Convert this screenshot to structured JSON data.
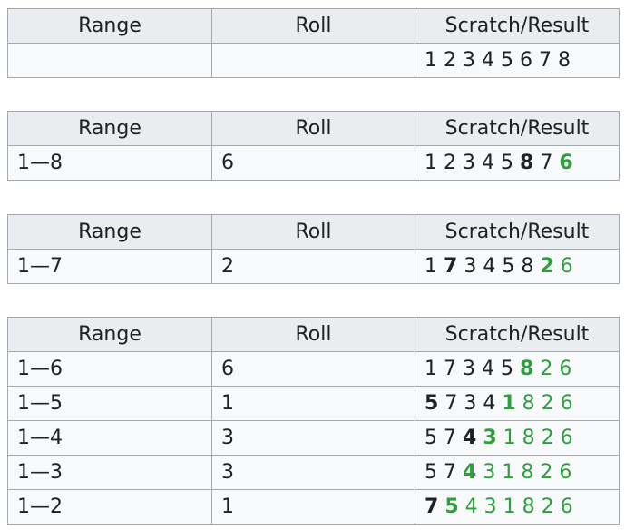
{
  "headers": {
    "range": "Range",
    "roll": "Roll",
    "scratch": "Scratch/Result"
  },
  "colors": {
    "green": "#2e9e3e",
    "black": "#202122"
  },
  "tables": [
    {
      "rows": [
        {
          "range": "",
          "roll": "",
          "digits": [
            {
              "d": "1",
              "s": "n"
            },
            {
              "d": "2",
              "s": "n"
            },
            {
              "d": "3",
              "s": "n"
            },
            {
              "d": "4",
              "s": "n"
            },
            {
              "d": "5",
              "s": "n"
            },
            {
              "d": "6",
              "s": "n"
            },
            {
              "d": "7",
              "s": "n"
            },
            {
              "d": "8",
              "s": "n"
            }
          ]
        }
      ]
    },
    {
      "rows": [
        {
          "range": "1—8",
          "roll": "6",
          "digits": [
            {
              "d": "1",
              "s": "n"
            },
            {
              "d": "2",
              "s": "n"
            },
            {
              "d": "3",
              "s": "n"
            },
            {
              "d": "4",
              "s": "n"
            },
            {
              "d": "5",
              "s": "n"
            },
            {
              "d": "8",
              "s": "b"
            },
            {
              "d": "7",
              "s": "n"
            },
            {
              "d": "6",
              "s": "gb"
            }
          ]
        }
      ]
    },
    {
      "rows": [
        {
          "range": "1—7",
          "roll": "2",
          "digits": [
            {
              "d": "1",
              "s": "n"
            },
            {
              "d": "7",
              "s": "b"
            },
            {
              "d": "3",
              "s": "n"
            },
            {
              "d": "4",
              "s": "n"
            },
            {
              "d": "5",
              "s": "n"
            },
            {
              "d": "8",
              "s": "n"
            },
            {
              "d": "2",
              "s": "gb"
            },
            {
              "d": "6",
              "s": "g"
            }
          ]
        }
      ]
    },
    {
      "rows": [
        {
          "range": "1—6",
          "roll": "6",
          "digits": [
            {
              "d": "1",
              "s": "n"
            },
            {
              "d": "7",
              "s": "n"
            },
            {
              "d": "3",
              "s": "n"
            },
            {
              "d": "4",
              "s": "n"
            },
            {
              "d": "5",
              "s": "n"
            },
            {
              "d": "8",
              "s": "gb"
            },
            {
              "d": "2",
              "s": "g"
            },
            {
              "d": "6",
              "s": "g"
            }
          ]
        },
        {
          "range": "1—5",
          "roll": "1",
          "digits": [
            {
              "d": "5",
              "s": "b"
            },
            {
              "d": "7",
              "s": "n"
            },
            {
              "d": "3",
              "s": "n"
            },
            {
              "d": "4",
              "s": "n"
            },
            {
              "d": "1",
              "s": "gb"
            },
            {
              "d": "8",
              "s": "g"
            },
            {
              "d": "2",
              "s": "g"
            },
            {
              "d": "6",
              "s": "g"
            }
          ]
        },
        {
          "range": "1—4",
          "roll": "3",
          "digits": [
            {
              "d": "5",
              "s": "n"
            },
            {
              "d": "7",
              "s": "n"
            },
            {
              "d": "4",
              "s": "b"
            },
            {
              "d": "3",
              "s": "gb"
            },
            {
              "d": "1",
              "s": "g"
            },
            {
              "d": "8",
              "s": "g"
            },
            {
              "d": "2",
              "s": "g"
            },
            {
              "d": "6",
              "s": "g"
            }
          ]
        },
        {
          "range": "1—3",
          "roll": "3",
          "digits": [
            {
              "d": "5",
              "s": "n"
            },
            {
              "d": "7",
              "s": "n"
            },
            {
              "d": "4",
              "s": "gb"
            },
            {
              "d": "3",
              "s": "g"
            },
            {
              "d": "1",
              "s": "g"
            },
            {
              "d": "8",
              "s": "g"
            },
            {
              "d": "2",
              "s": "g"
            },
            {
              "d": "6",
              "s": "g"
            }
          ]
        },
        {
          "range": "1—2",
          "roll": "1",
          "digits": [
            {
              "d": "7",
              "s": "b"
            },
            {
              "d": "5",
              "s": "gb"
            },
            {
              "d": "4",
              "s": "g"
            },
            {
              "d": "3",
              "s": "g"
            },
            {
              "d": "1",
              "s": "g"
            },
            {
              "d": "8",
              "s": "g"
            },
            {
              "d": "2",
              "s": "g"
            },
            {
              "d": "6",
              "s": "g"
            }
          ]
        }
      ]
    }
  ]
}
